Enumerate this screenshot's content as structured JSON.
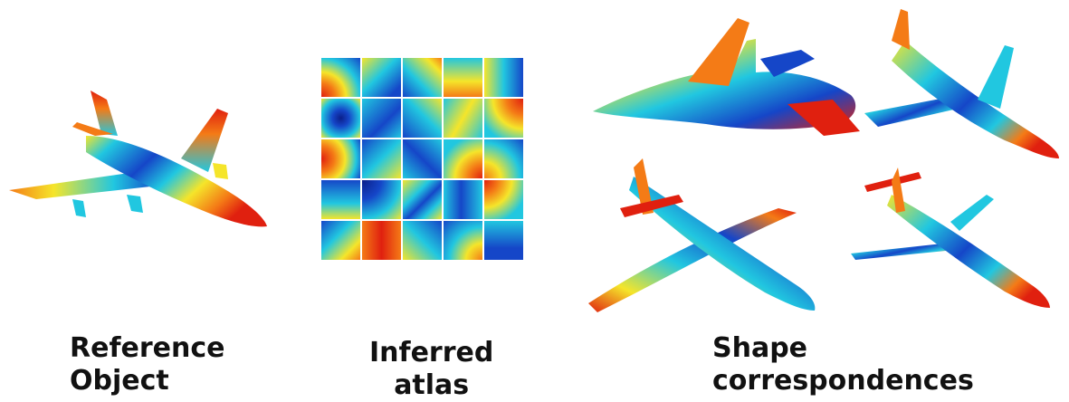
{
  "captions": {
    "reference": [
      "Reference",
      "Object"
    ],
    "atlas": [
      "Inferred",
      "atlas"
    ],
    "shapes": [
      "Shape",
      "correspondences"
    ]
  },
  "colors": {
    "red": "#e0200f",
    "orange": "#f47b16",
    "yellow": "#f5e52a",
    "cyan": "#21c7e0",
    "blue": "#1546c8",
    "navy": "#0b1f8a"
  }
}
